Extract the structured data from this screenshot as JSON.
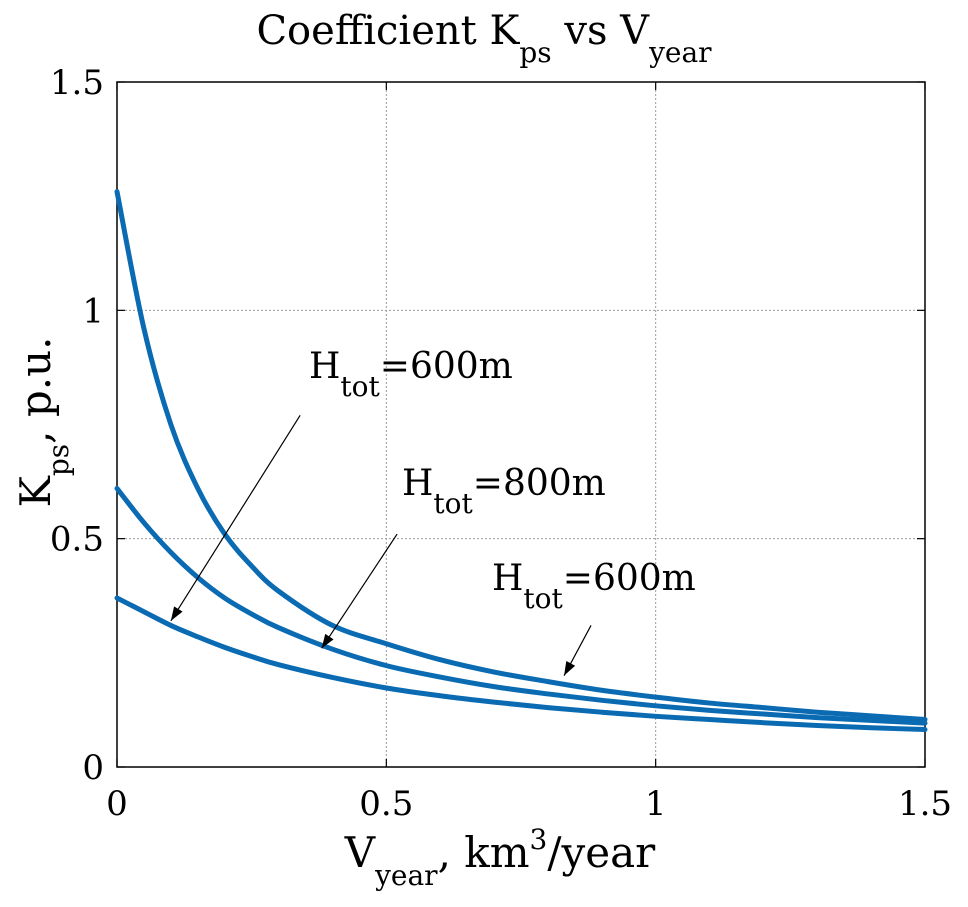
{
  "chart_data": {
    "type": "line",
    "title": {
      "main": "Coefficient K",
      "k_sub": "ps",
      "middle": " vs V",
      "v_sub": "year"
    },
    "xlabel": {
      "main": "V",
      "sub": "year",
      "after": ",  km",
      "sup": "3",
      "end": "/year"
    },
    "ylabel": {
      "main": "K",
      "sub": "ps",
      "after": ", p.u."
    },
    "xlim": [
      0,
      1.5
    ],
    "ylim": [
      0,
      1.5
    ],
    "xticks": [
      0,
      0.5,
      1,
      1.5
    ],
    "yticks": [
      0,
      0.5,
      1,
      1.5
    ],
    "xtick_labels": [
      "0",
      "0.5",
      "1",
      "1.5"
    ],
    "ytick_labels": [
      "0",
      "0.5",
      "1",
      "1.5"
    ],
    "grid": true,
    "color": "#0a6ab2",
    "series": [
      {
        "name": "Upper curve",
        "x": [
          0,
          0.05,
          0.1,
          0.15,
          0.2,
          0.25,
          0.3,
          0.4,
          0.5,
          0.6,
          0.7,
          0.8,
          0.9,
          1.0,
          1.1,
          1.2,
          1.3,
          1.4,
          1.5
        ],
        "y": [
          1.26,
          0.96,
          0.75,
          0.61,
          0.51,
          0.44,
          0.385,
          0.31,
          0.27,
          0.235,
          0.208,
          0.187,
          0.168,
          0.153,
          0.14,
          0.13,
          0.12,
          0.112,
          0.104
        ]
      },
      {
        "name": "Middle curve",
        "x": [
          0,
          0.05,
          0.1,
          0.15,
          0.2,
          0.25,
          0.3,
          0.4,
          0.5,
          0.6,
          0.7,
          0.8,
          0.9,
          1.0,
          1.1,
          1.2,
          1.3,
          1.4,
          1.5
        ],
        "y": [
          0.61,
          0.535,
          0.47,
          0.415,
          0.37,
          0.335,
          0.305,
          0.258,
          0.222,
          0.197,
          0.176,
          0.16,
          0.146,
          0.134,
          0.124,
          0.116,
          0.108,
          0.102,
          0.096
        ]
      },
      {
        "name": "Lower curve",
        "x": [
          0,
          0.05,
          0.1,
          0.15,
          0.2,
          0.25,
          0.3,
          0.4,
          0.5,
          0.6,
          0.7,
          0.8,
          0.9,
          1.0,
          1.1,
          1.2,
          1.3,
          1.4,
          1.5
        ],
        "y": [
          0.37,
          0.34,
          0.31,
          0.285,
          0.262,
          0.242,
          0.224,
          0.196,
          0.173,
          0.156,
          0.142,
          0.13,
          0.12,
          0.111,
          0.104,
          0.097,
          0.091,
          0.086,
          0.082
        ]
      }
    ],
    "annotations": [
      {
        "main": "H",
        "sub": "tot",
        "value": "=600m",
        "tail": [
          0.34,
          0.77
        ],
        "head": [
          0.1,
          0.32
        ]
      },
      {
        "main": "H",
        "sub": "tot",
        "value": "=800m",
        "tail": [
          0.52,
          0.51
        ],
        "head": [
          0.38,
          0.26
        ]
      },
      {
        "main": "H",
        "sub": "tot",
        "value": "=600m",
        "tail": [
          0.88,
          0.31
        ],
        "head": [
          0.83,
          0.2
        ]
      }
    ]
  }
}
